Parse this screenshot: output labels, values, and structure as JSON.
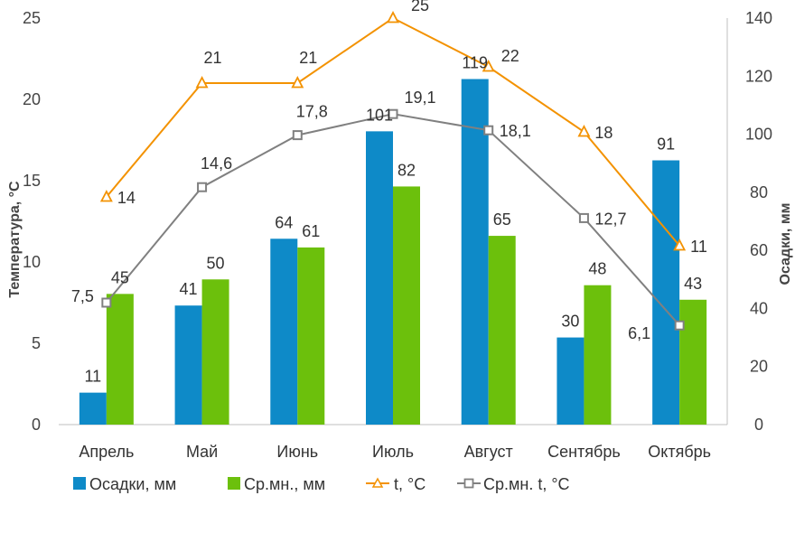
{
  "chart_data": {
    "type": "bar+line",
    "categories": [
      "Апрель",
      "Май",
      "Июнь",
      "Июль",
      "Август",
      "Сентябрь",
      "Октябрь"
    ],
    "bar_series": [
      {
        "name": "Осадки, мм",
        "color": "#0e8ac8",
        "values": [
          11,
          41,
          64,
          101,
          119,
          30,
          91
        ],
        "labels": [
          "11",
          "41",
          "64",
          "101",
          "119",
          "30",
          "91"
        ],
        "axis": "right"
      },
      {
        "name": "Ср.мн., мм",
        "color": "#6cc00c",
        "values": [
          45,
          50,
          61,
          82,
          65,
          48,
          43
        ],
        "labels": [
          "45",
          "50",
          "61",
          "82",
          "65",
          "48",
          "43"
        ],
        "axis": "right"
      }
    ],
    "line_series": [
      {
        "name": "t, °C",
        "color": "#f39200",
        "marker": "triangle",
        "values": [
          14,
          21,
          21,
          25,
          22,
          18,
          11
        ],
        "labels": [
          "14",
          "21",
          "21",
          "25",
          "22",
          "18",
          "11"
        ],
        "axis": "left"
      },
      {
        "name": "Ср.мн. t, °C",
        "color": "#808080",
        "marker": "square",
        "values": [
          7.5,
          14.6,
          17.8,
          19.1,
          18.1,
          12.7,
          6.1
        ],
        "labels": [
          "7,5",
          "14,6",
          "17,8",
          "19,1",
          "18,1",
          "12,7",
          "6,1"
        ],
        "axis": "left"
      }
    ],
    "y_left": {
      "label": "Температура, °C",
      "range": [
        0,
        25
      ],
      "ticks": [
        "0",
        "5",
        "10",
        "15",
        "20",
        "25"
      ]
    },
    "y_right": {
      "label": "Осадки, мм",
      "range": [
        0,
        140
      ],
      "ticks": [
        "0",
        "20",
        "40",
        "60",
        "80",
        "100",
        "120",
        "140"
      ]
    },
    "grid": false,
    "legend_position": "bottom"
  }
}
